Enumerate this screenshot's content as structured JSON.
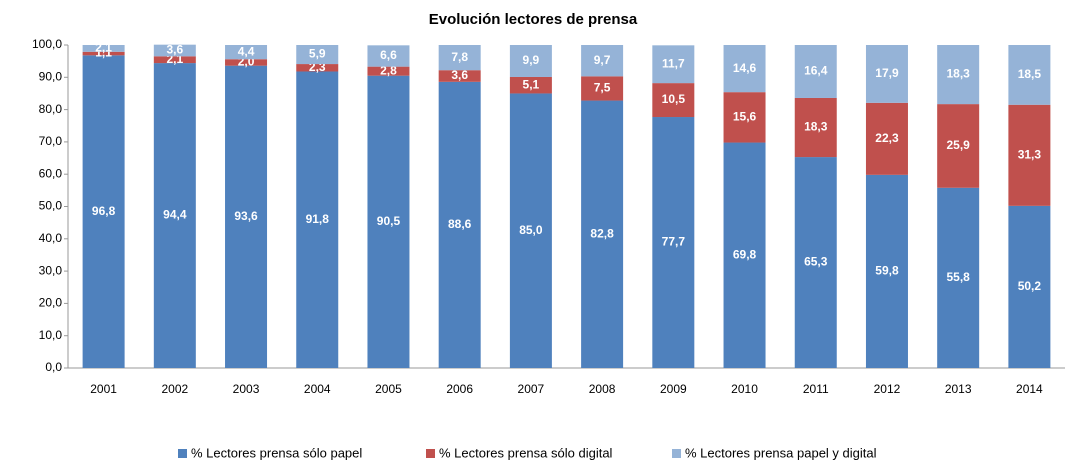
{
  "chart_data": {
    "type": "stacked_bar",
    "title": "Evolución lectores de prensa",
    "categories": [
      "2001",
      "2002",
      "2003",
      "2004",
      "2005",
      "2006",
      "2007",
      "2008",
      "2009",
      "2010",
      "2011",
      "2012",
      "2013",
      "2014"
    ],
    "series": [
      {
        "name": "% Lectores prensa sólo papel",
        "color": "#4f81bd",
        "values": [
          96.8,
          94.4,
          93.6,
          91.8,
          90.5,
          88.6,
          85.0,
          82.8,
          77.7,
          69.8,
          65.3,
          59.8,
          55.8,
          50.2
        ],
        "value_labels": [
          "96,8",
          "94,4",
          "93,6",
          "91,8",
          "90,5",
          "88,6",
          "85,0",
          "82,8",
          "77,7",
          "69,8",
          "65,3",
          "59,8",
          "55,8",
          "50,2"
        ]
      },
      {
        "name": "% Lectores prensa sólo digital",
        "color": "#c0504d",
        "values": [
          1.1,
          2.1,
          2.0,
          2.3,
          2.8,
          3.6,
          5.1,
          7.5,
          10.5,
          15.6,
          18.3,
          22.3,
          25.9,
          31.3
        ],
        "value_labels": [
          "1,1",
          "2,1",
          "2,0",
          "2,3",
          "2,8",
          "3,6",
          "5,1",
          "7,5",
          "10,5",
          "15,6",
          "18,3",
          "22,3",
          "25,9",
          "31,3"
        ]
      },
      {
        "name": "% Lectores prensa papel y digital",
        "color": "#95b3d7",
        "values": [
          2.1,
          3.6,
          4.4,
          5.9,
          6.6,
          7.8,
          9.9,
          9.7,
          11.7,
          14.6,
          16.4,
          17.9,
          18.3,
          18.5
        ],
        "value_labels": [
          "2,1",
          "3,6",
          "4,4",
          "5,9",
          "6,6",
          "7,8",
          "9,9",
          "9,7",
          "11,7",
          "14,6",
          "16,4",
          "17,9",
          "18,3",
          "18,5"
        ]
      }
    ],
    "ylim": [
      0,
      100
    ],
    "yticks": [
      {
        "value": 0,
        "label": "0,0"
      },
      {
        "value": 10,
        "label": "10,0"
      },
      {
        "value": 20,
        "label": "20,0"
      },
      {
        "value": 30,
        "label": "30,0"
      },
      {
        "value": 40,
        "label": "40,0"
      },
      {
        "value": 50,
        "label": "50,0"
      },
      {
        "value": 60,
        "label": "60,0"
      },
      {
        "value": 70,
        "label": "70,0"
      },
      {
        "value": 80,
        "label": "80,0"
      },
      {
        "value": 90,
        "label": "90,0"
      },
      {
        "value": 100,
        "label": "100,0"
      }
    ],
    "grid": false,
    "legend": "bottom"
  }
}
